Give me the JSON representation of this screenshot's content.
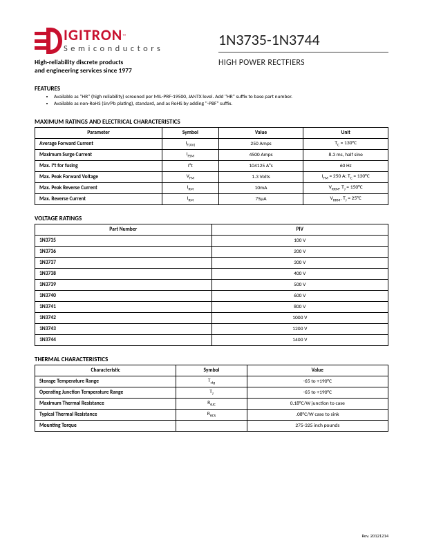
{
  "logo": {
    "brand_main": "IGITRON",
    "brand_prefix_letter": "D",
    "tm": "™",
    "sub": "Semiconductors",
    "tagline1": "High-reliability discrete products",
    "tagline2": "and engineering services since 1977",
    "red": "#c8102e"
  },
  "title": "1N3735-1N3744",
  "subtitle": "HIGH POWER RECTFIERS",
  "features": {
    "heading": "FEATURES",
    "items": [
      "Available as \"HR\" (high reliability) screened per MIL-PRF-19500, JANTX level.  Add \"HR\" suffix to base part number.",
      "Available as non-RoHS (Sn/Pb plating), standard, and as RoHS by adding \"-PBF\" suffix."
    ]
  },
  "table1": {
    "heading": "MAXIMUM RATINGS AND ELECTRICAL CHARACTERISTICS",
    "cols": [
      "Parameter",
      "Symbol",
      "Value",
      "Unit"
    ],
    "rows": [
      {
        "p": "Average Forward Current",
        "s": "I<sub>F(AV)</sub>",
        "v": "250 Amps",
        "u": "T<sub>C</sub> = 130°C"
      },
      {
        "p": "Maximum Surge Current",
        "s": "I<sub>FSM</sub>",
        "v": "4500 Amps",
        "u": "8.3 ms, half sine"
      },
      {
        "p": "Max. I²t for fusing",
        "s": "I²t",
        "v": "104125 A²s",
        "u": "60 Hz"
      },
      {
        "p": "Max. Peak Forward Voltage",
        "s": "V<sub>FM</sub>",
        "v": "1.3 Volts",
        "u": "I<sub>FM</sub> = 250 A; T<sub>C</sub> = 130°C"
      },
      {
        "p": "Max. Peak Reverse Current",
        "s": "I<sub>RM</sub>",
        "v": "10mA",
        "u": "V<sub>RRM</sub>, T<sub>J</sub> = 150°C"
      },
      {
        "p": "Max. Reverse Current",
        "s": "I<sub>RM</sub>",
        "v": "75µA",
        "u": "V<sub>RRM</sub>, T<sub>J</sub> = 25°C"
      }
    ]
  },
  "table2": {
    "heading": "VOLTAGE RATINGS",
    "cols": [
      "Part Number",
      "PIV"
    ],
    "rows": [
      {
        "pn": "1N3735",
        "piv": "100 V"
      },
      {
        "pn": "1N3736",
        "piv": "200 V"
      },
      {
        "pn": "1N3737",
        "piv": "300 V"
      },
      {
        "pn": "1N3738",
        "piv": "400 V"
      },
      {
        "pn": "1N3739",
        "piv": "500 V"
      },
      {
        "pn": "1N3740",
        "piv": "600 V"
      },
      {
        "pn": "1N3741",
        "piv": "800 V"
      },
      {
        "pn": "1N3742",
        "piv": "1000 V"
      },
      {
        "pn": "1N3743",
        "piv": "1200 V"
      },
      {
        "pn": "1N3744",
        "piv": "1400 V"
      }
    ]
  },
  "table3": {
    "heading": "THERMAL CHARACTERISTICS",
    "cols": [
      "Characteristic",
      "Symbol",
      "Value"
    ],
    "rows": [
      {
        "c": "Storage Temperature Range",
        "s": "T<sub>stg</sub>",
        "v": "-65 to +190°C"
      },
      {
        "c": "Operating Junction Temperature Range",
        "s": "T<sub>J</sub>",
        "v": "-65 to +190°C"
      },
      {
        "c": "Maximum Thermal Resistance",
        "s": "R<sub>θJC</sub>",
        "v": "0.18°C/W junction to case"
      },
      {
        "c": "Typical Thermal Resistance",
        "s": "R<sub>θCS</sub>",
        "v": ".08°C/W case to sink"
      },
      {
        "c": "Mounting Torque",
        "s": "",
        "v": "275-325 inch pounds"
      }
    ]
  },
  "rev": "Rev. 20121214"
}
